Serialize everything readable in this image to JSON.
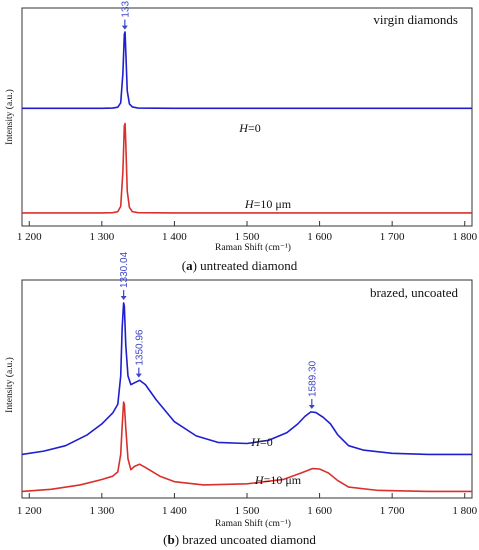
{
  "chart_data": [
    {
      "type": "line",
      "panel": "a",
      "title": "virgin diamonds",
      "xlabel": "Raman Shift (cm⁻¹)",
      "ylabel": "Intensity (a.u.)",
      "xlim": [
        1190,
        1810
      ],
      "x_ticks": [
        1200,
        1300,
        1400,
        1500,
        1600,
        1700,
        1800
      ],
      "x_tick_labels": [
        "1 200",
        "1 300",
        "1 400",
        "1 500",
        "1 600",
        "1 700",
        "1 800"
      ],
      "peak_annotations": [
        {
          "x": 1331.71,
          "label": "1331.71",
          "color": "#3a45c8"
        }
      ],
      "series": [
        {
          "name": "H=0",
          "label_italic": "H",
          "label_rest": "=0",
          "color": "#1f1fcf",
          "x": [
            1190,
            1300,
            1315,
            1322,
            1326,
            1329,
            1331,
            1332,
            1333,
            1335,
            1338,
            1342,
            1350,
            1400,
            1600,
            1810
          ],
          "y": [
            0.54,
            0.54,
            0.541,
            0.545,
            0.565,
            0.7,
            0.88,
            0.89,
            0.8,
            0.62,
            0.56,
            0.546,
            0.541,
            0.54,
            0.54,
            0.54
          ]
        },
        {
          "name": "H=10 μm",
          "label_italic": "H",
          "label_rest": "=10 μm",
          "color": "#d9302c",
          "x": [
            1190,
            1300,
            1315,
            1322,
            1326,
            1329,
            1331,
            1332,
            1333,
            1335,
            1338,
            1342,
            1350,
            1400,
            1600,
            1810
          ],
          "y": [
            0.06,
            0.06,
            0.061,
            0.066,
            0.09,
            0.25,
            0.46,
            0.47,
            0.38,
            0.16,
            0.085,
            0.066,
            0.061,
            0.06,
            0.06,
            0.06
          ]
        }
      ],
      "ylim": [
        0,
        1
      ],
      "caption_bold": "a",
      "caption_rest": "untreated diamond"
    },
    {
      "type": "line",
      "panel": "b",
      "title": "brazed, uncoated",
      "xlabel": "Raman Shift (cm⁻¹)",
      "ylabel": "Intensity (a.u.)",
      "xlim": [
        1190,
        1810
      ],
      "x_ticks": [
        1200,
        1300,
        1400,
        1500,
        1600,
        1700,
        1800
      ],
      "x_tick_labels": [
        "1 200",
        "1 300",
        "1 400",
        "1 500",
        "1 600",
        "1 700",
        "1 800"
      ],
      "peak_annotations": [
        {
          "x": 1330.04,
          "label": "1330.04",
          "color": "#3a45c8"
        },
        {
          "x": 1350.96,
          "label": "1350.96",
          "color": "#3a45c8"
        },
        {
          "x": 1589.3,
          "label": "1589.30",
          "color": "#3a45c8"
        }
      ],
      "series": [
        {
          "name": "H=0",
          "label_italic": "H",
          "label_rest": "=0",
          "color": "#1f1fcf",
          "x": [
            1190,
            1220,
            1250,
            1280,
            1300,
            1315,
            1322,
            1326,
            1328,
            1330,
            1331,
            1333,
            1336,
            1340,
            1346,
            1352,
            1360,
            1375,
            1400,
            1430,
            1460,
            1500,
            1530,
            1555,
            1570,
            1580,
            1588,
            1595,
            1605,
            1615,
            1625,
            1640,
            1660,
            1700,
            1750,
            1810
          ],
          "y": [
            0.2,
            0.215,
            0.24,
            0.29,
            0.34,
            0.39,
            0.43,
            0.56,
            0.78,
            0.895,
            0.88,
            0.7,
            0.56,
            0.52,
            0.53,
            0.54,
            0.52,
            0.45,
            0.35,
            0.285,
            0.255,
            0.25,
            0.265,
            0.3,
            0.34,
            0.375,
            0.395,
            0.392,
            0.37,
            0.34,
            0.29,
            0.24,
            0.22,
            0.205,
            0.2,
            0.2
          ]
        },
        {
          "name": "H=10 μm",
          "label_italic": "H",
          "label_rest": "=10 μm",
          "color": "#d9302c",
          "x": [
            1190,
            1230,
            1270,
            1300,
            1315,
            1322,
            1326,
            1328,
            1330,
            1331,
            1333,
            1336,
            1340,
            1345,
            1352,
            1360,
            1380,
            1400,
            1440,
            1500,
            1550,
            1575,
            1590,
            1600,
            1612,
            1625,
            1640,
            1680,
            1750,
            1810
          ],
          "y": [
            0.03,
            0.04,
            0.06,
            0.085,
            0.1,
            0.12,
            0.2,
            0.33,
            0.44,
            0.43,
            0.32,
            0.18,
            0.13,
            0.145,
            0.155,
            0.14,
            0.1,
            0.075,
            0.06,
            0.065,
            0.085,
            0.115,
            0.135,
            0.133,
            0.115,
            0.08,
            0.05,
            0.035,
            0.03,
            0.03
          ]
        }
      ],
      "ylim": [
        0,
        1
      ],
      "caption_bold": "b",
      "caption_rest": "brazed uncoated diamond"
    }
  ]
}
